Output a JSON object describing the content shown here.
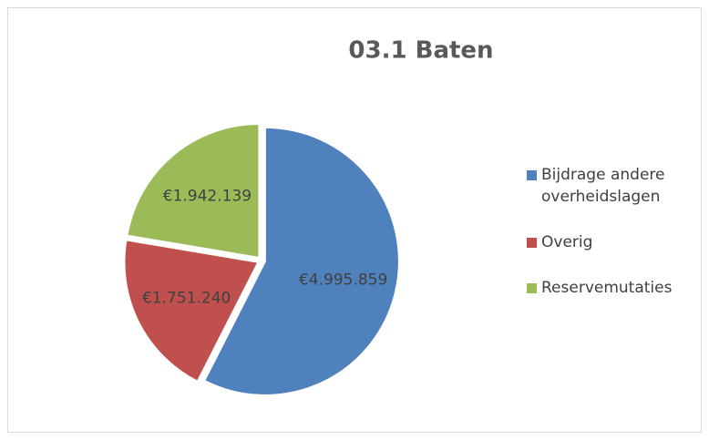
{
  "chart_data": {
    "type": "pie",
    "title": "03.1 Baten",
    "categories": [
      "Bijdrage andere overheidslagen",
      "Overig",
      "Reservemutaties"
    ],
    "values": [
      4995859,
      1751240,
      1942139
    ],
    "value_labels": [
      "€4.995.859",
      "€1.751.240",
      "€1.942.139"
    ],
    "colors": [
      "#4f81bd",
      "#c0504d",
      "#9bbb59"
    ],
    "legend": "right"
  }
}
